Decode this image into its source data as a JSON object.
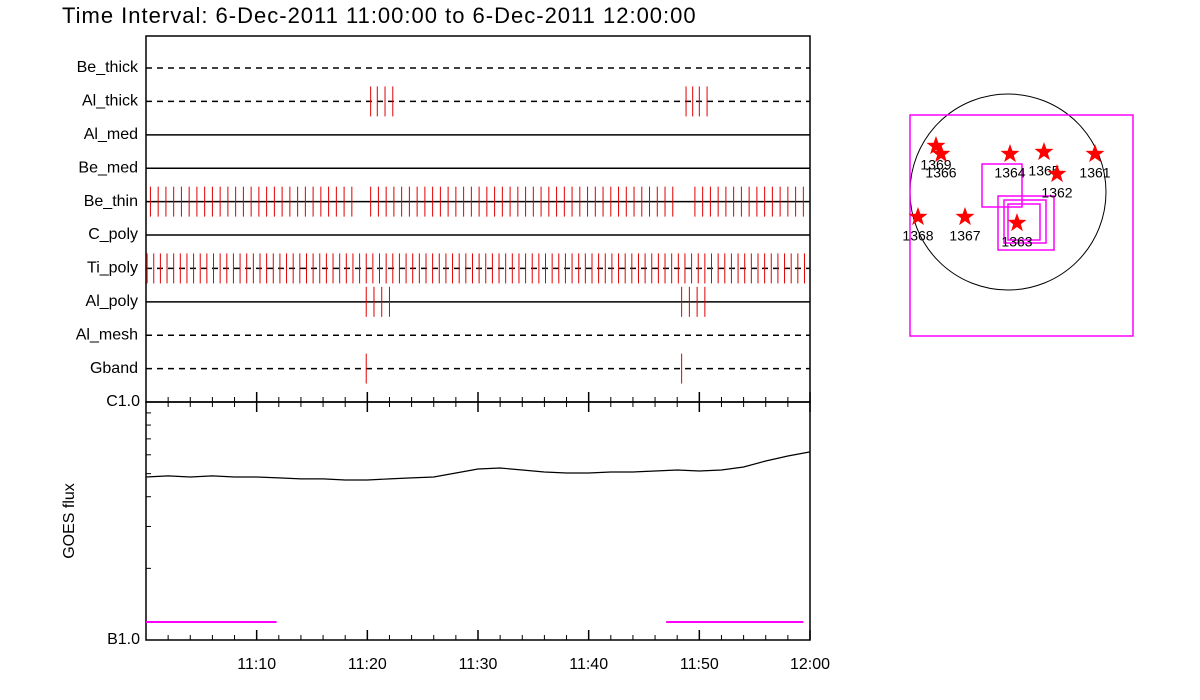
{
  "chart_data": [
    {
      "type": "timeline",
      "title": "Time Interval:  6-Dec-2011 11:00:00 to  6-Dec-2011 12:00:00",
      "color": "#e00000",
      "rows": [
        {
          "name": "Be_thick",
          "line_style": "dashed",
          "values": []
        },
        {
          "name": "Al_thick",
          "line_style": "dashed",
          "values": [
            20.3,
            20.9,
            21.6,
            22.3,
            48.8,
            49.4,
            50.0,
            50.7
          ]
        },
        {
          "name": "Al_med",
          "line_style": "solid",
          "values": []
        },
        {
          "name": "Be_med",
          "line_style": "solid",
          "values": []
        },
        {
          "name": "Be_thin",
          "line_style": "solid",
          "values": [
            0.4,
            1.1,
            1.8,
            2.5,
            3.2,
            3.9,
            4.6,
            5.3,
            6.0,
            6.7,
            7.4,
            8.1,
            8.8,
            9.5,
            10.2,
            10.9,
            11.6,
            12.3,
            13.0,
            13.7,
            14.4,
            15.1,
            15.8,
            16.5,
            17.2,
            17.9,
            18.6,
            20.3,
            21.0,
            21.7,
            22.4,
            23.1,
            23.8,
            24.5,
            25.2,
            25.9,
            26.6,
            27.3,
            28.0,
            28.7,
            29.4,
            30.1,
            30.8,
            31.5,
            32.2,
            32.9,
            33.6,
            34.3,
            35.0,
            35.7,
            36.4,
            37.1,
            37.8,
            38.5,
            39.2,
            39.9,
            40.6,
            41.3,
            42.0,
            42.7,
            43.4,
            44.1,
            44.8,
            45.5,
            46.2,
            46.9,
            47.6,
            49.6,
            50.3,
            51.0,
            51.7,
            52.4,
            53.1,
            53.8,
            54.5,
            55.2,
            55.9,
            56.6,
            57.3,
            58.0,
            58.7,
            59.4
          ]
        },
        {
          "name": "C_poly",
          "line_style": "solid",
          "values": []
        },
        {
          "name": "Ti_poly",
          "line_style": "dashed",
          "values": [
            0.1,
            0.7,
            1.3,
            1.9,
            2.5,
            3.1,
            3.7,
            4.3,
            4.9,
            5.5,
            6.1,
            6.7,
            7.3,
            7.9,
            8.5,
            9.1,
            9.7,
            10.3,
            10.9,
            11.5,
            12.1,
            12.7,
            13.3,
            13.9,
            14.5,
            15.1,
            15.7,
            16.3,
            16.9,
            17.5,
            18.1,
            18.7,
            19.3,
            19.9,
            20.5,
            21.1,
            21.7,
            22.3,
            22.9,
            23.5,
            24.1,
            24.7,
            25.3,
            25.9,
            26.5,
            27.1,
            27.7,
            28.3,
            28.9,
            29.5,
            30.1,
            30.7,
            31.3,
            31.9,
            32.5,
            33.1,
            33.7,
            34.3,
            34.9,
            35.5,
            36.1,
            36.7,
            37.3,
            37.9,
            38.5,
            39.1,
            39.7,
            40.3,
            40.9,
            41.5,
            42.1,
            42.7,
            43.3,
            43.9,
            44.5,
            45.1,
            45.7,
            46.3,
            46.9,
            47.5,
            48.1,
            48.7,
            49.3,
            49.9,
            50.5,
            51.1,
            51.7,
            52.3,
            52.9,
            53.5,
            54.1,
            54.7,
            55.3,
            55.9,
            56.5,
            57.1,
            57.7,
            58.3,
            58.9,
            59.5
          ]
        },
        {
          "name": "Al_poly",
          "line_style": "solid",
          "values": [
            19.9,
            20.6,
            21.3,
            22.0,
            48.4,
            49.1,
            49.8,
            50.5
          ]
        },
        {
          "name": "Al_mesh",
          "line_style": "dashed",
          "values": []
        },
        {
          "name": "Gband",
          "line_style": "dashed",
          "values": [
            19.9,
            48.4
          ]
        }
      ]
    },
    {
      "type": "line",
      "ylabel": "GOES flux",
      "log_scale": true,
      "color": "#000000",
      "xlim": [
        0,
        60
      ],
      "xticks": [
        {
          "value": 10,
          "label": "11:10"
        },
        {
          "value": 20,
          "label": "11:20"
        },
        {
          "value": 30,
          "label": "11:30"
        },
        {
          "value": 40,
          "label": "11:40"
        },
        {
          "value": 50,
          "label": "11:50"
        },
        {
          "value": 60,
          "label": "12:00"
        }
      ],
      "xminorticks": [
        2,
        4,
        6,
        8,
        12,
        14,
        16,
        18,
        22,
        24,
        26,
        28,
        32,
        34,
        36,
        38,
        42,
        44,
        46,
        48,
        52,
        54,
        56,
        58
      ],
      "ylim": [
        1e-07,
        1e-06
      ],
      "yticks": [
        {
          "value": 1e-07,
          "label": "B1.0"
        },
        {
          "value": 1e-06,
          "label": "C1.0"
        }
      ],
      "yminorticks": [
        2e-07,
        3e-07,
        4e-07,
        5e-07,
        6e-07,
        7e-07,
        8e-07,
        9e-07
      ],
      "x": [
        0,
        2,
        4,
        6,
        8,
        10,
        12,
        14,
        16,
        18,
        20,
        22,
        24,
        26,
        28,
        30,
        32,
        34,
        36,
        38,
        40,
        42,
        44,
        46,
        48,
        50,
        52,
        54,
        56,
        58,
        60
      ],
      "values": [
        4.84e-07,
        4.89e-07,
        4.84e-07,
        4.89e-07,
        4.84e-07,
        4.84e-07,
        4.8e-07,
        4.75e-07,
        4.75e-07,
        4.7e-07,
        4.7e-07,
        4.75e-07,
        4.8e-07,
        4.84e-07,
        5.03e-07,
        5.23e-07,
        5.28e-07,
        5.18e-07,
        5.08e-07,
        5.03e-07,
        5.03e-07,
        5.08e-07,
        5.08e-07,
        5.13e-07,
        5.18e-07,
        5.13e-07,
        5.18e-07,
        5.33e-07,
        5.65e-07,
        5.93e-07,
        6.17e-07
      ],
      "intervals": {
        "color": "#ff00ff",
        "ranges": [
          [
            0,
            11.8
          ],
          [
            47,
            59.4
          ]
        ]
      }
    },
    {
      "type": "map",
      "star_color": "#ff0000",
      "box_color": "#ff00ff",
      "regions": [
        "1369",
        "1366",
        "1364",
        "1365",
        "1362",
        "1361",
        "1368",
        "1367",
        "1363"
      ]
    }
  ]
}
